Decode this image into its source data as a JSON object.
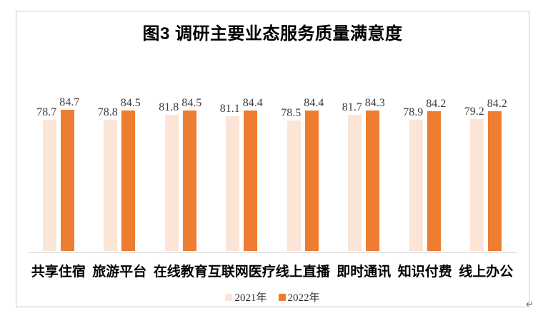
{
  "page": {
    "background": "#ffffff",
    "return_mark": "↵"
  },
  "chart": {
    "border_color": "#c9c9c9",
    "axis_line_color": "#d9d9d9",
    "title_color": "#000000",
    "value_label_color": "#3d3d3d"
  },
  "chart_data": {
    "type": "bar",
    "title": "图3 调研主要业态服务质量满意度",
    "categories": [
      "共享住宿",
      "旅游平台",
      "在线教育",
      "互联网医疗",
      "线上直播",
      "即时通讯",
      "知识付费",
      "线上办公"
    ],
    "series": [
      {
        "name": "2021年",
        "color": "#FBE5D6",
        "values": [
          78.7,
          78.8,
          81.8,
          81.1,
          78.5,
          81.7,
          78.9,
          79.2
        ]
      },
      {
        "name": "2022年",
        "color": "#ED7D31",
        "values": [
          84.7,
          84.5,
          84.5,
          84.4,
          84.4,
          84.3,
          84.2,
          84.2
        ]
      }
    ],
    "xlabel": "",
    "ylabel": "",
    "ylim": [
      0,
      90
    ],
    "grid": false,
    "y_axis_visible": false,
    "value_labels": true,
    "legend_position": "bottom"
  }
}
